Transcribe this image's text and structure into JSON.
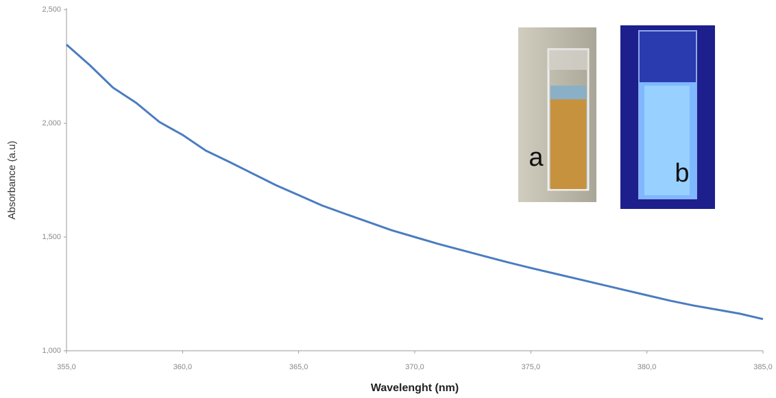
{
  "chart_data": {
    "type": "line",
    "x_label": "Wavelenght (nm)",
    "y_label": "Absorbance (a.u)",
    "x": [
      355,
      356,
      357,
      358,
      359,
      360,
      361,
      362,
      363,
      364,
      365,
      366,
      367,
      368,
      369,
      370,
      371,
      372,
      373,
      374,
      375,
      376,
      377,
      378,
      379,
      380,
      381,
      382,
      383,
      384,
      385
    ],
    "series": [
      {
        "color": "#4a7cc0",
        "values": [
          2.346,
          2.256,
          2.157,
          2.09,
          2.006,
          1.949,
          1.88,
          1.831,
          1.78,
          1.729,
          1.684,
          1.639,
          1.602,
          1.566,
          1.53,
          1.5,
          1.47,
          1.443,
          1.416,
          1.389,
          1.364,
          1.34,
          1.316,
          1.292,
          1.268,
          1.244,
          1.22,
          1.199,
          1.181,
          1.163,
          1.139
        ]
      }
    ],
    "xlim": [
      355,
      385
    ],
    "xticks": [
      {
        "value": 355,
        "label": "355,0"
      },
      {
        "value": 360,
        "label": "360,0"
      },
      {
        "value": 365,
        "label": "365,0"
      },
      {
        "value": 370,
        "label": "370,0"
      },
      {
        "value": 375,
        "label": "375,0"
      },
      {
        "value": 380,
        "label": "380,0"
      },
      {
        "value": 385,
        "label": "385,0"
      }
    ],
    "ylim": [
      1,
      2.5
    ],
    "yticks": [
      {
        "value": 1,
        "label": "1,000"
      },
      {
        "value": 1.5,
        "label": "1,500"
      },
      {
        "value": 2,
        "label": "2,000"
      },
      {
        "value": 2.5,
        "label": "2,500"
      }
    ],
    "grid": false,
    "annotations": [
      "a",
      "b"
    ]
  }
}
